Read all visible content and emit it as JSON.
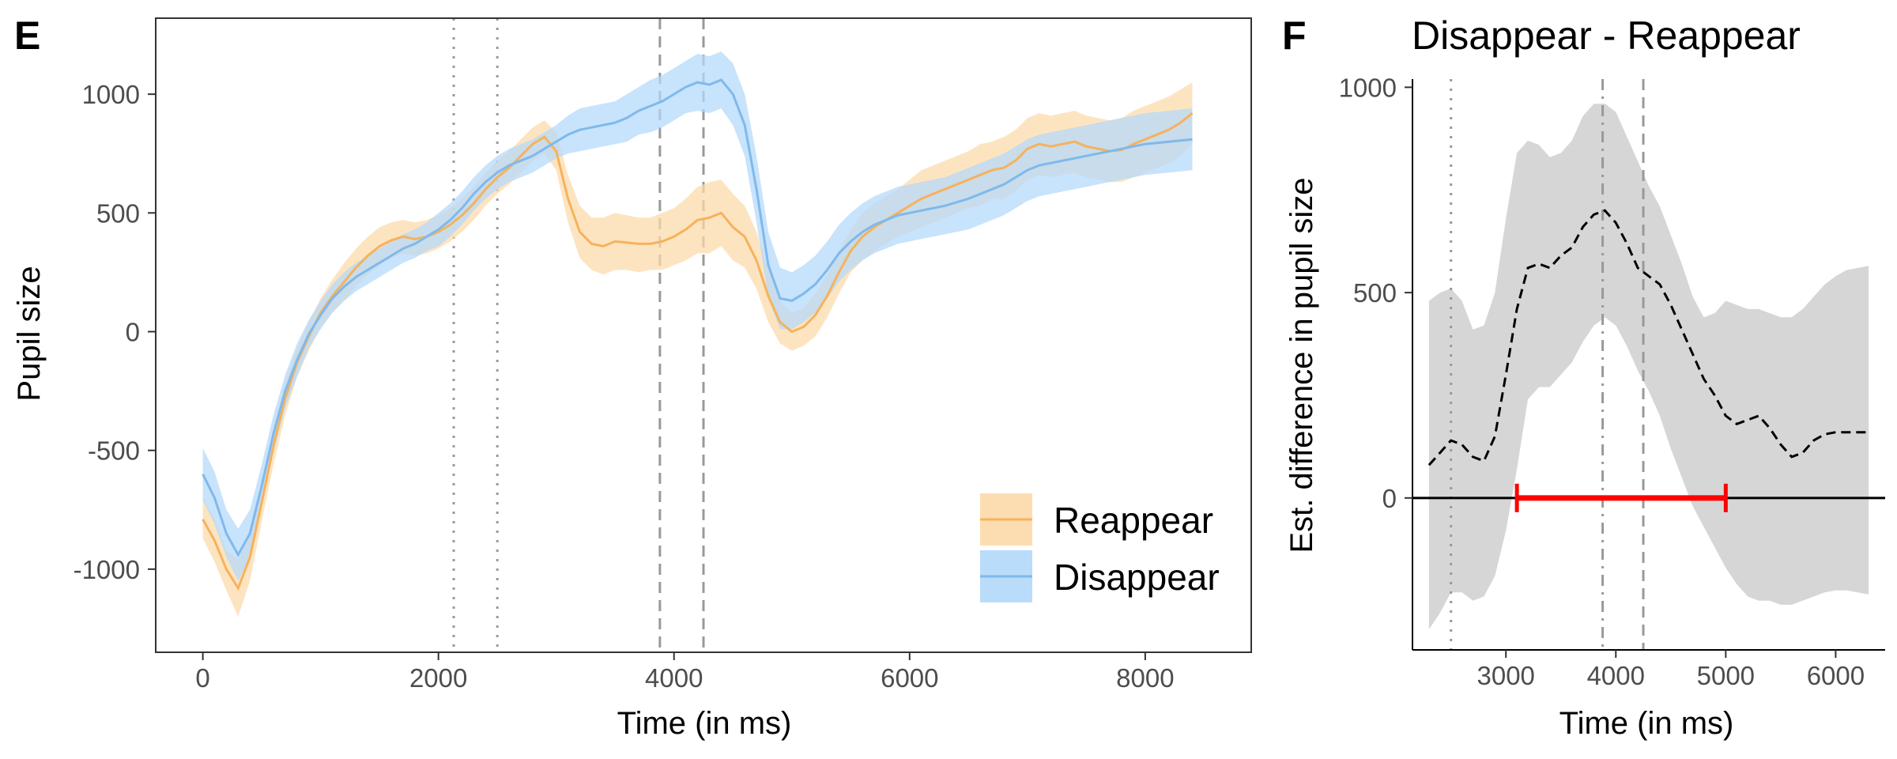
{
  "chart_data": [
    {
      "panel": "E",
      "type": "line",
      "xlabel": "Time (in ms)",
      "ylabel": "Pupil size",
      "xlim": [
        -400,
        8900
      ],
      "ylim": [
        -1350,
        1320
      ],
      "xticks": [
        "0",
        "2000",
        "4000",
        "6000",
        "8000"
      ],
      "yticks": [
        "-1000",
        "-500",
        "0",
        "500",
        "1000"
      ],
      "grid": false,
      "legend_position": "bottom-right",
      "vlines": [
        {
          "x": 2130,
          "style": "dotted"
        },
        {
          "x": 2500,
          "style": "dotted"
        },
        {
          "x": 3880,
          "style": "dashed"
        },
        {
          "x": 4250,
          "style": "dashed"
        }
      ],
      "series": [
        {
          "name": "Reappear",
          "color": "#f6b25b",
          "fill": "#fcd9a9",
          "x": [
            0,
            100,
            200,
            300,
            400,
            500,
            600,
            700,
            800,
            900,
            1000,
            1100,
            1200,
            1300,
            1400,
            1500,
            1600,
            1700,
            1800,
            1900,
            2000,
            2100,
            2200,
            2300,
            2400,
            2500,
            2600,
            2700,
            2800,
            2900,
            3000,
            3100,
            3200,
            3300,
            3400,
            3500,
            3600,
            3700,
            3800,
            3900,
            4000,
            4100,
            4200,
            4300,
            4400,
            4500,
            4600,
            4700,
            4800,
            4900,
            5000,
            5100,
            5200,
            5300,
            5400,
            5500,
            5600,
            5700,
            5800,
            5900,
            6000,
            6100,
            6200,
            6300,
            6400,
            6500,
            6600,
            6700,
            6800,
            6900,
            7000,
            7100,
            7200,
            7300,
            7400,
            7500,
            7600,
            7700,
            7800,
            7900,
            8000,
            8100,
            8200,
            8300,
            8400
          ],
          "mean": [
            -790,
            -880,
            -1000,
            -1080,
            -950,
            -720,
            -480,
            -280,
            -130,
            -20,
            80,
            150,
            210,
            270,
            320,
            360,
            385,
            400,
            390,
            400,
            420,
            450,
            490,
            540,
            600,
            650,
            690,
            740,
            790,
            820,
            760,
            560,
            420,
            370,
            360,
            380,
            375,
            370,
            370,
            380,
            400,
            430,
            470,
            480,
            500,
            440,
            400,
            300,
            150,
            40,
            0,
            20,
            70,
            150,
            250,
            340,
            400,
            440,
            470,
            500,
            530,
            560,
            580,
            600,
            620,
            640,
            660,
            680,
            690,
            720,
            770,
            790,
            780,
            790,
            800,
            780,
            770,
            760,
            765,
            790,
            810,
            830,
            850,
            880,
            920
          ],
          "upper": [
            -700,
            -790,
            -920,
            -960,
            -860,
            -640,
            -400,
            -210,
            -70,
            40,
            140,
            220,
            290,
            350,
            400,
            440,
            460,
            470,
            460,
            470,
            490,
            520,
            560,
            610,
            670,
            720,
            760,
            810,
            860,
            890,
            840,
            660,
            530,
            480,
            480,
            500,
            490,
            480,
            480,
            500,
            520,
            560,
            610,
            630,
            640,
            580,
            530,
            420,
            260,
            130,
            80,
            100,
            160,
            240,
            340,
            430,
            500,
            540,
            570,
            600,
            640,
            680,
            700,
            720,
            740,
            760,
            790,
            800,
            820,
            850,
            900,
            920,
            910,
            920,
            930,
            910,
            900,
            890,
            900,
            930,
            950,
            970,
            990,
            1020,
            1050
          ],
          "lower": [
            -870,
            -970,
            -1090,
            -1200,
            -1050,
            -800,
            -560,
            -350,
            -190,
            -80,
            20,
            80,
            130,
            190,
            240,
            280,
            310,
            330,
            320,
            330,
            350,
            380,
            420,
            470,
            530,
            580,
            620,
            670,
            720,
            750,
            680,
            460,
            310,
            260,
            240,
            260,
            260,
            250,
            260,
            260,
            280,
            300,
            330,
            330,
            360,
            300,
            270,
            180,
            40,
            -50,
            -80,
            -60,
            -20,
            60,
            160,
            250,
            300,
            340,
            370,
            400,
            420,
            440,
            460,
            480,
            500,
            520,
            530,
            560,
            560,
            590,
            640,
            660,
            650,
            660,
            670,
            650,
            640,
            630,
            630,
            650,
            670,
            690,
            710,
            740,
            790
          ]
        },
        {
          "name": "Disappear",
          "color": "#7fb9ec",
          "fill": "#b3d8fb",
          "x": [
            0,
            100,
            200,
            300,
            400,
            500,
            600,
            700,
            800,
            900,
            1000,
            1100,
            1200,
            1300,
            1400,
            1500,
            1600,
            1700,
            1800,
            1900,
            2000,
            2100,
            2200,
            2300,
            2400,
            2500,
            2600,
            2700,
            2800,
            2900,
            3000,
            3100,
            3200,
            3300,
            3400,
            3500,
            3600,
            3700,
            3800,
            3900,
            4000,
            4100,
            4200,
            4300,
            4400,
            4500,
            4600,
            4700,
            4800,
            4900,
            5000,
            5100,
            5200,
            5300,
            5400,
            5500,
            5600,
            5700,
            5800,
            5900,
            6000,
            6100,
            6200,
            6300,
            6400,
            6500,
            6600,
            6700,
            6800,
            6900,
            7000,
            7100,
            7200,
            7300,
            7400,
            7500,
            7600,
            7700,
            7800,
            7900,
            8000,
            8100,
            8200,
            8300,
            8400
          ],
          "mean": [
            -600,
            -700,
            -850,
            -940,
            -850,
            -650,
            -430,
            -250,
            -120,
            -10,
            70,
            140,
            190,
            230,
            260,
            290,
            320,
            350,
            370,
            400,
            430,
            470,
            520,
            580,
            630,
            670,
            700,
            720,
            740,
            770,
            800,
            830,
            850,
            860,
            870,
            880,
            900,
            930,
            950,
            970,
            1000,
            1030,
            1050,
            1040,
            1060,
            1000,
            870,
            600,
            280,
            140,
            130,
            160,
            200,
            260,
            330,
            380,
            420,
            450,
            470,
            490,
            500,
            510,
            520,
            530,
            545,
            560,
            580,
            600,
            620,
            650,
            680,
            700,
            710,
            720,
            730,
            740,
            750,
            760,
            770,
            780,
            790,
            795,
            800,
            805,
            810
          ],
          "upper": [
            -490,
            -590,
            -750,
            -830,
            -750,
            -560,
            -350,
            -180,
            -50,
            50,
            130,
            200,
            250,
            290,
            320,
            350,
            380,
            410,
            430,
            460,
            500,
            540,
            590,
            650,
            700,
            740,
            770,
            790,
            810,
            840,
            870,
            910,
            940,
            950,
            960,
            970,
            1000,
            1030,
            1060,
            1080,
            1110,
            1140,
            1170,
            1160,
            1180,
            1130,
            1000,
            740,
            420,
            270,
            250,
            280,
            320,
            380,
            450,
            500,
            540,
            570,
            590,
            610,
            620,
            630,
            640,
            650,
            670,
            690,
            710,
            730,
            750,
            780,
            810,
            830,
            840,
            850,
            860,
            870,
            880,
            890,
            900,
            910,
            920,
            925,
            930,
            935,
            940
          ],
          "lower": [
            -710,
            -810,
            -950,
            -1050,
            -950,
            -740,
            -510,
            -320,
            -190,
            -70,
            10,
            80,
            130,
            170,
            200,
            230,
            260,
            290,
            310,
            340,
            360,
            400,
            450,
            510,
            560,
            600,
            630,
            650,
            670,
            700,
            730,
            750,
            760,
            770,
            780,
            790,
            800,
            830,
            840,
            860,
            890,
            920,
            930,
            920,
            940,
            870,
            740,
            460,
            140,
            10,
            10,
            40,
            80,
            140,
            210,
            260,
            300,
            330,
            350,
            370,
            380,
            390,
            400,
            410,
            420,
            430,
            450,
            470,
            490,
            520,
            550,
            570,
            580,
            590,
            600,
            610,
            620,
            630,
            640,
            650,
            660,
            665,
            670,
            675,
            680
          ]
        }
      ]
    },
    {
      "panel": "F",
      "type": "line",
      "title": "Disappear - Reappear",
      "xlabel": "Time (in ms)",
      "ylabel": "Est. difference in pupil size",
      "xlim": [
        2150,
        6450
      ],
      "ylim": [
        -370,
        1020
      ],
      "xticks": [
        "3000",
        "4000",
        "5000",
        "6000"
      ],
      "yticks": [
        "0",
        "500",
        "1000"
      ],
      "grid": false,
      "color": "#000000",
      "ribbon_color": "#d6d6d6",
      "significant_color": "#ff0000",
      "hline": 0,
      "significant_interval": [
        3100,
        5000
      ],
      "vlines": [
        {
          "x": 2500,
          "style": "dotted"
        },
        {
          "x": 3880,
          "style": "dashdot"
        },
        {
          "x": 4250,
          "style": "dashed"
        }
      ],
      "x": [
        2300,
        2400,
        2500,
        2600,
        2700,
        2800,
        2900,
        3000,
        3100,
        3200,
        3300,
        3400,
        3500,
        3600,
        3700,
        3800,
        3900,
        4000,
        4100,
        4200,
        4300,
        4400,
        4500,
        4600,
        4700,
        4800,
        4900,
        5000,
        5100,
        5200,
        5300,
        5400,
        5500,
        5600,
        5700,
        5800,
        5900,
        6000,
        6100,
        6200,
        6300
      ],
      "mean": [
        80,
        110,
        140,
        130,
        100,
        90,
        150,
        300,
        460,
        560,
        570,
        560,
        590,
        610,
        660,
        690,
        700,
        670,
        620,
        560,
        540,
        520,
        470,
        410,
        350,
        290,
        250,
        200,
        180,
        190,
        200,
        170,
        130,
        100,
        110,
        140,
        155,
        160,
        160,
        160,
        160
      ],
      "upper": [
        480,
        500,
        510,
        480,
        410,
        420,
        500,
        680,
        840,
        870,
        860,
        830,
        840,
        870,
        930,
        960,
        960,
        940,
        880,
        820,
        760,
        710,
        640,
        570,
        490,
        440,
        450,
        480,
        470,
        460,
        460,
        450,
        440,
        440,
        460,
        490,
        520,
        540,
        555,
        560,
        565
      ],
      "lower": [
        -320,
        -280,
        -230,
        -230,
        -250,
        -240,
        -190,
        -80,
        70,
        240,
        270,
        270,
        300,
        330,
        380,
        420,
        440,
        420,
        370,
        310,
        260,
        200,
        120,
        50,
        -20,
        -70,
        -120,
        -170,
        -210,
        -240,
        -250,
        -250,
        -260,
        -260,
        -250,
        -240,
        -230,
        -225,
        -225,
        -230,
        -235
      ]
    }
  ]
}
